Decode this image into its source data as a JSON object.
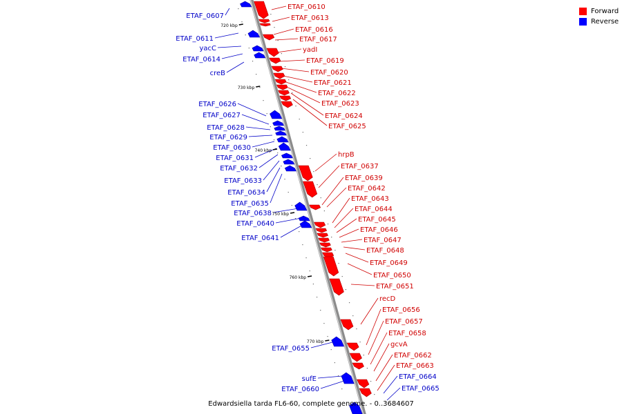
{
  "legend": {
    "forward_label": "Forward",
    "reverse_label": "Reverse",
    "forward_color": "#ff0000",
    "reverse_color": "#0000ff"
  },
  "caption": "Edwardsiella tarda FL6-60, complete genome. - 0..3684607",
  "kbp_ticks": [
    "720 kbp",
    "730 kbp",
    "740 kbp",
    "750 kbp",
    "760 kbp",
    "770 kbp"
  ],
  "forward_genes": [
    "ETAF_0610",
    "ETAF_0613",
    "ETAF_0616",
    "ETAF_0617",
    "yadI",
    "ETAF_0619",
    "ETAF_0620",
    "ETAF_0621",
    "ETAF_0622",
    "ETAF_0623",
    "ETAF_0624",
    "ETAF_0625",
    "hrpB",
    "ETAF_0637",
    "ETAF_0639",
    "ETAF_0642",
    "ETAF_0643",
    "ETAF_0644",
    "ETAF_0645",
    "ETAF_0646",
    "ETAF_0647",
    "ETAF_0648",
    "ETAF_0649",
    "ETAF_0650",
    "ETAF_0651",
    "recD",
    "ETAF_0656",
    "ETAF_0657",
    "ETAF_0658",
    "gcvA",
    "ETAF_0662",
    "ETAF_0663"
  ],
  "reverse_genes": [
    "ETAF_0607",
    "ETAF_0611",
    "yacC",
    "ETAF_0614",
    "creB",
    "ETAF_0626",
    "ETAF_0627",
    "ETAF_0628",
    "ETAF_0629",
    "ETAF_0630",
    "ETAF_0631",
    "ETAF_0632",
    "ETAF_0633",
    "ETAF_0634",
    "ETAF_0635",
    "ETAF_0638",
    "ETAF_0640",
    "ETAF_0641",
    "ETAF_0655",
    "sufE",
    "ETAF_0660",
    "ETAF_0664",
    "ETAF_0665"
  ]
}
